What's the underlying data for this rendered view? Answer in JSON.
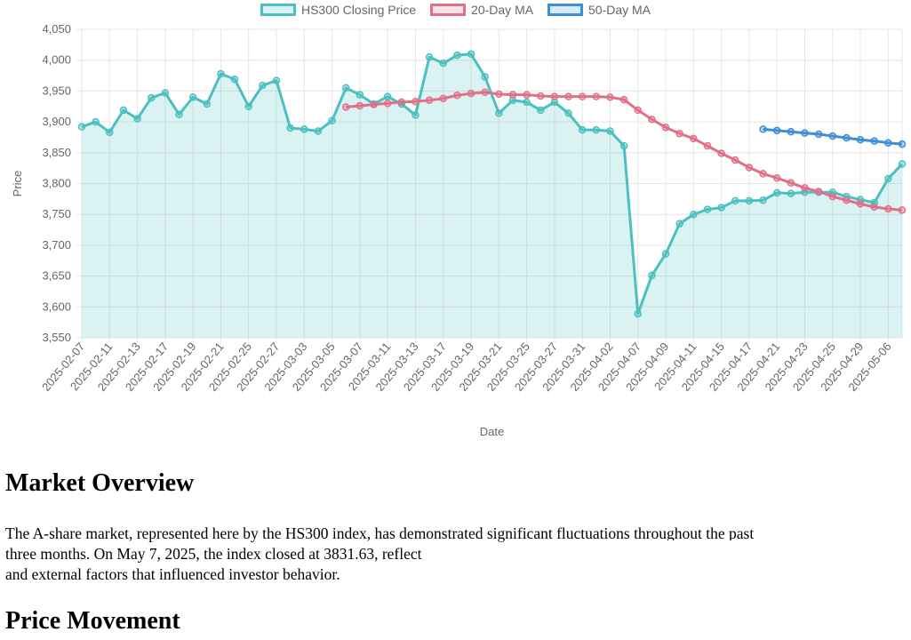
{
  "chart_data": {
    "type": "line",
    "xlabel": "Date",
    "ylabel": "Price",
    "ylim": [
      3550,
      4050
    ],
    "yticks": [
      3550,
      3600,
      3650,
      3700,
      3750,
      3800,
      3850,
      3900,
      3950,
      4000,
      4050
    ],
    "ytick_labels": [
      "3,550",
      "3,600",
      "3,650",
      "3,700",
      "3,750",
      "3,800",
      "3,850",
      "3,900",
      "3,950",
      "4,000",
      "4,050"
    ],
    "x_tick_labels": [
      "2025-02-07",
      "2025-02-11",
      "2025-02-13",
      "2025-02-17",
      "2025-02-19",
      "2025-02-21",
      "2025-02-25",
      "2025-02-27",
      "2025-03-03",
      "2025-03-05",
      "2025-03-07",
      "2025-03-11",
      "2025-03-13",
      "2025-03-17",
      "2025-03-19",
      "2025-03-21",
      "2025-03-25",
      "2025-03-27",
      "2025-03-31",
      "2025-04-02",
      "2025-04-07",
      "2025-04-09",
      "2025-04-11",
      "2025-04-15",
      "2025-04-17",
      "2025-04-21",
      "2025-04-23",
      "2025-04-25",
      "2025-04-29",
      "2025-05-06"
    ],
    "legend_position": "top",
    "series": [
      {
        "name": "HS300 Closing Price",
        "color": "#4bc0c0",
        "fill": "rgba(75,192,192,0.2)",
        "values": [
          3892,
          3900,
          3883,
          3919,
          3905,
          3939,
          3947,
          3912,
          3940,
          3929,
          3978,
          3969,
          3925,
          3959,
          3967,
          3890,
          3888,
          3885,
          3902,
          3955,
          3944,
          3929,
          3941,
          3929,
          3911,
          4005,
          3995,
          4008,
          4010,
          3973,
          3914,
          3935,
          3932,
          3919,
          3932,
          3914,
          3887,
          3887,
          3885,
          3861,
          3589,
          3651,
          3686,
          3735,
          3750,
          3758,
          3761,
          3772,
          3772,
          3773,
          3785,
          3784,
          3786,
          3786,
          3786,
          3779,
          3774,
          3769,
          3808,
          3831.63
        ]
      },
      {
        "name": "20-Day MA",
        "color": "#e0708a",
        "values": [
          null,
          null,
          null,
          null,
          null,
          null,
          null,
          null,
          null,
          null,
          null,
          null,
          null,
          null,
          null,
          null,
          null,
          null,
          null,
          3924,
          3926,
          3928,
          3930,
          3932,
          3933,
          3935,
          3938,
          3943,
          3946,
          3948,
          3945,
          3944,
          3944,
          3942,
          3941,
          3941,
          3941,
          3941,
          3940,
          3936,
          3919,
          3904,
          3891,
          3881,
          3873,
          3861,
          3849,
          3838,
          3826,
          3816,
          3809,
          3801,
          3793,
          3787,
          3779,
          3773,
          3767,
          3762,
          3759,
          3757
        ]
      },
      {
        "name": "50-Day MA",
        "color": "#3d8fd6",
        "values": [
          null,
          null,
          null,
          null,
          null,
          null,
          null,
          null,
          null,
          null,
          null,
          null,
          null,
          null,
          null,
          null,
          null,
          null,
          null,
          null,
          null,
          null,
          null,
          null,
          null,
          null,
          null,
          null,
          null,
          null,
          null,
          null,
          null,
          null,
          null,
          null,
          null,
          null,
          null,
          null,
          null,
          null,
          null,
          null,
          null,
          null,
          null,
          null,
          null,
          3888,
          3886,
          3884,
          3882,
          3880,
          3877,
          3874,
          3871,
          3869,
          3866,
          3864
        ]
      }
    ]
  },
  "article": {
    "overview_heading": "Market Overview",
    "overview_line1": "The A-share market, represented here by the HS300 index, has demonstrated significant fluctuations throughout the past",
    "overview_line2": "three months. On May 7, 2025, the index closed at 3831.63, reflect",
    "overview_line3": "and external factors that influenced investor behavior.",
    "price_heading": "Price Movement"
  }
}
